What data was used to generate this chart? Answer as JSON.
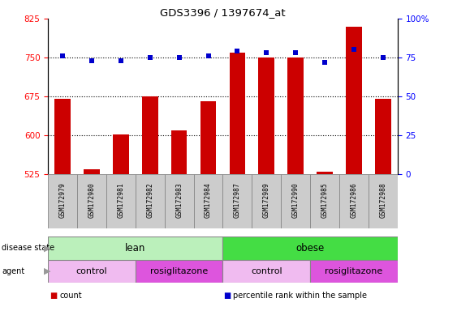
{
  "title": "GDS3396 / 1397674_at",
  "samples": [
    "GSM172979",
    "GSM172980",
    "GSM172981",
    "GSM172982",
    "GSM172983",
    "GSM172984",
    "GSM172987",
    "GSM172989",
    "GSM172990",
    "GSM172985",
    "GSM172986",
    "GSM172988"
  ],
  "counts": [
    670,
    535,
    601,
    675,
    610,
    665,
    760,
    750,
    750,
    530,
    810,
    670
  ],
  "percentiles": [
    76,
    73,
    73,
    75,
    75,
    76,
    79,
    78,
    78,
    72,
    80,
    75
  ],
  "ylim_left": [
    525,
    825
  ],
  "ylim_right": [
    0,
    100
  ],
  "yticks_left": [
    525,
    600,
    675,
    750,
    825
  ],
  "yticks_right": [
    0,
    25,
    50,
    75,
    100
  ],
  "ytick_right_labels": [
    "0",
    "25",
    "50",
    "75",
    "100%"
  ],
  "bar_color": "#cc0000",
  "dot_color": "#0000cc",
  "disease_state_groups": [
    {
      "label": "lean",
      "start": 0,
      "end": 6,
      "color": "#bbf0bb"
    },
    {
      "label": "obese",
      "start": 6,
      "end": 12,
      "color": "#44dd44"
    }
  ],
  "agent_groups": [
    {
      "label": "control",
      "start": 0,
      "end": 3,
      "color": "#f0bbf0"
    },
    {
      "label": "rosiglitazone",
      "start": 3,
      "end": 6,
      "color": "#dd55dd"
    },
    {
      "label": "control",
      "start": 6,
      "end": 9,
      "color": "#f0bbf0"
    },
    {
      "label": "rosiglitazone",
      "start": 9,
      "end": 12,
      "color": "#dd55dd"
    }
  ],
  "legend_items": [
    {
      "label": "count",
      "color": "#cc0000"
    },
    {
      "label": "percentile rank within the sample",
      "color": "#0000cc"
    }
  ],
  "hline_values": [
    600,
    675,
    750
  ],
  "tick_label_bg": "#cccccc",
  "tick_label_edgecolor": "#888888",
  "bar_width": 0.55
}
